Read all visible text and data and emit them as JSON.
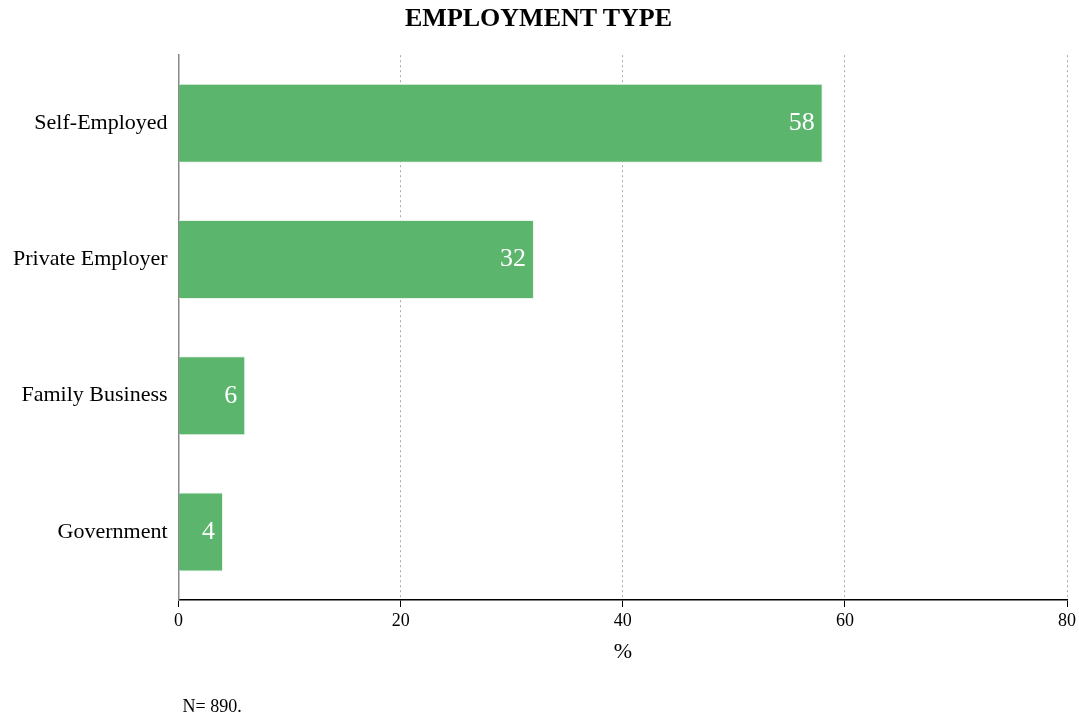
{
  "chart_data": {
    "type": "bar",
    "orientation": "horizontal",
    "title": "EMPLOYMENT TYPE",
    "categories": [
      "Self-Employed",
      "Private Employer",
      "Family Business",
      "Government"
    ],
    "values": [
      58,
      32,
      6,
      4
    ],
    "color": "#5cb56c",
    "xlabel": "%",
    "xlim": [
      0,
      80
    ],
    "xticks": [
      0,
      20,
      40,
      60,
      80
    ],
    "grid": "x",
    "data_labels": true,
    "annotations": [
      "N= 890."
    ]
  }
}
